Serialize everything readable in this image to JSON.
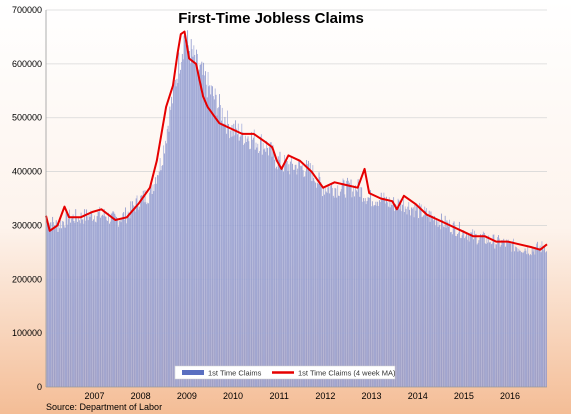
{
  "chart_data": {
    "type": "bar",
    "title": "First-Time Jobless Claims",
    "source": "Source: Department of Labor",
    "xlabel": "",
    "ylabel": "",
    "ylim": [
      0,
      700000
    ],
    "yticks": [
      0,
      100000,
      200000,
      300000,
      400000,
      500000,
      600000,
      700000
    ],
    "ytick_labels": [
      "0",
      "100000",
      "200000",
      "300000",
      "400000",
      "500000",
      "600000",
      "700000"
    ],
    "xlim": [
      2006.0,
      2016.85
    ],
    "xtick_labels": [
      "2007",
      "2008",
      "2009",
      "2010",
      "2011",
      "2012",
      "2013",
      "2014",
      "2015",
      "2016"
    ],
    "xtick_positions": [
      2007.0,
      2008.0,
      2009.0,
      2010.0,
      2011.0,
      2012.0,
      2013.0,
      2014.0,
      2015.0,
      2016.0
    ],
    "grid": "horizontal",
    "legend_placement": "bottom-center",
    "series": [
      {
        "name": "1st Time Claims",
        "type": "bar",
        "color": "#8c96cc",
        "x": [
          2006.0,
          2006.25,
          2006.5,
          2006.75,
          2007.0,
          2007.25,
          2007.5,
          2007.75,
          2008.0,
          2008.25,
          2008.5,
          2008.75,
          2008.9,
          2009.0,
          2009.25,
          2009.5,
          2009.75,
          2010.0,
          2010.25,
          2010.5,
          2010.75,
          2011.0,
          2011.25,
          2011.5,
          2011.75,
          2012.0,
          2012.25,
          2012.5,
          2012.75,
          2013.0,
          2013.25,
          2013.5,
          2013.75,
          2014.0,
          2014.25,
          2014.5,
          2014.75,
          2015.0,
          2015.25,
          2015.5,
          2015.75,
          2016.0,
          2016.25,
          2016.5,
          2016.85
        ],
        "values": [
          310000,
          300000,
          315000,
          315000,
          320000,
          320000,
          310000,
          320000,
          345000,
          360000,
          420000,
          540000,
          610000,
          650000,
          600000,
          560000,
          520000,
          480000,
          470000,
          460000,
          450000,
          420000,
          410000,
          410000,
          400000,
          370000,
          370000,
          370000,
          370000,
          350000,
          350000,
          340000,
          340000,
          330000,
          320000,
          310000,
          300000,
          290000,
          280000,
          275000,
          270000,
          265000,
          260000,
          255000,
          262000
        ]
      },
      {
        "name": "1st Time Claims (4 week MA)",
        "type": "line",
        "color": "#e60000",
        "x": [
          2006.0,
          2006.08,
          2006.25,
          2006.4,
          2006.5,
          2006.75,
          2007.0,
          2007.2,
          2007.5,
          2007.75,
          2008.0,
          2008.25,
          2008.4,
          2008.6,
          2008.75,
          2008.85,
          2008.92,
          2009.0,
          2009.1,
          2009.25,
          2009.4,
          2009.5,
          2009.75,
          2010.0,
          2010.25,
          2010.5,
          2010.75,
          2010.9,
          2011.0,
          2011.1,
          2011.25,
          2011.5,
          2011.75,
          2012.0,
          2012.25,
          2012.5,
          2012.75,
          2012.9,
          2013.0,
          2013.25,
          2013.5,
          2013.6,
          2013.75,
          2014.0,
          2014.25,
          2014.5,
          2014.75,
          2015.0,
          2015.25,
          2015.5,
          2015.75,
          2016.0,
          2016.25,
          2016.5,
          2016.7,
          2016.85
        ],
        "values": [
          318000,
          290000,
          300000,
          335000,
          315000,
          315000,
          325000,
          330000,
          310000,
          315000,
          340000,
          370000,
          420000,
          520000,
          560000,
          620000,
          655000,
          660000,
          610000,
          600000,
          540000,
          520000,
          490000,
          480000,
          470000,
          470000,
          455000,
          445000,
          420000,
          405000,
          430000,
          420000,
          400000,
          370000,
          380000,
          375000,
          370000,
          405000,
          360000,
          350000,
          345000,
          330000,
          355000,
          340000,
          320000,
          310000,
          300000,
          290000,
          280000,
          280000,
          270000,
          270000,
          265000,
          260000,
          255000,
          265000
        ]
      }
    ]
  }
}
